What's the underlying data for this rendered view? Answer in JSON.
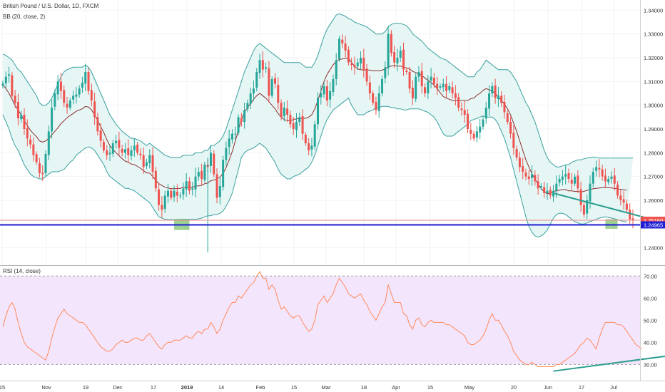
{
  "header": {
    "symbol_line": "British Pound / U.S. Dollar, 1D, FXCM",
    "bb_line": "BB (20, close, 2)",
    "rsi_line": "RSI (14, close)"
  },
  "colors": {
    "up": "#26a69a",
    "down": "#ef5350",
    "bb_band": "#3aa0a0",
    "bb_fill": "#e6f6f4",
    "bb_basis": "#8b2f2f",
    "support_line": "#1f1fd6",
    "price_line": "#e88a8a",
    "rsi_line": "#ff8a5c",
    "rsi_band": "#f3e5fb",
    "trendline": "#2b9e8f",
    "highlight": "#7cc36e"
  },
  "price_axis": {
    "ylim": [
      1.2345,
      1.3425
    ],
    "ticks": [
      "1.34000",
      "1.33000",
      "1.32000",
      "1.31000",
      "1.30000",
      "1.29000",
      "1.28000",
      "1.27000",
      "1.26000",
      "1.25000",
      "1.24000"
    ],
    "tick_values": [
      1.34,
      1.33,
      1.32,
      1.31,
      1.3,
      1.29,
      1.28,
      1.27,
      1.26,
      1.25,
      1.24
    ],
    "last_price_label": "1.25160",
    "support_label": "1.24965"
  },
  "rsi_axis": {
    "ylim": [
      24,
      73
    ],
    "ticks": [
      "70.00",
      "60.00",
      "50.00",
      "40.00",
      "30.00"
    ],
    "tick_values": [
      70,
      60,
      50,
      40,
      30
    ],
    "band": [
      30,
      70
    ]
  },
  "x_axis": {
    "labels": [
      "15",
      "Nov",
      "19",
      "Dec",
      "17",
      "2019",
      "14",
      "Feb",
      "15",
      "Mar",
      "18",
      "Apr",
      "15",
      "May",
      "20",
      "Jun",
      "17",
      "Jul"
    ],
    "positions": [
      3,
      65,
      120,
      165,
      215,
      262,
      310,
      365,
      412,
      457,
      510,
      555,
      603,
      658,
      720,
      768,
      815,
      860
    ]
  },
  "chart_data": [
    {
      "type": "candlestick",
      "title": "British Pound / U.S. Dollar, 1D, FXCM",
      "overlay": "BB (20, close, 2)",
      "last_price": 1.2516,
      "support_level": 1.24965,
      "close": [
        1.3092,
        1.312,
        1.313,
        1.304,
        1.301,
        1.2945,
        1.296,
        1.29,
        1.286,
        1.2835,
        1.279,
        1.276,
        1.2715,
        1.271,
        1.2795,
        1.289,
        1.299,
        1.305,
        1.31,
        1.306,
        1.301,
        1.299,
        1.302,
        1.304,
        1.3045,
        1.307,
        1.3095,
        1.314,
        1.306,
        1.302,
        1.295,
        1.289,
        1.285,
        1.281,
        1.279,
        1.28,
        1.284,
        1.285,
        1.282,
        1.28,
        1.2815,
        1.279,
        1.281,
        1.283,
        1.28,
        1.279,
        1.274,
        1.276,
        1.279,
        1.272,
        1.265,
        1.258,
        1.256,
        1.262,
        1.264,
        1.261,
        1.264,
        1.262,
        1.262,
        1.265,
        1.268,
        1.264,
        1.265,
        1.27,
        1.272,
        1.269,
        1.275,
        1.274,
        1.28,
        1.271,
        1.261,
        1.266,
        1.277,
        1.282,
        1.286,
        1.288,
        1.288,
        1.295,
        1.293,
        1.298,
        1.301,
        1.305,
        1.307,
        1.314,
        1.319,
        1.315,
        1.316,
        1.304,
        1.311,
        1.309,
        1.301,
        1.295,
        1.299,
        1.296,
        1.292,
        1.29,
        1.293,
        1.295,
        1.288,
        1.284,
        1.281,
        1.283,
        1.292,
        1.303,
        1.305,
        1.308,
        1.302,
        1.306,
        1.311,
        1.319,
        1.328,
        1.326,
        1.323,
        1.318,
        1.317,
        1.316,
        1.318,
        1.32,
        1.315,
        1.31,
        1.305,
        1.301,
        1.298,
        1.305,
        1.311,
        1.316,
        1.33,
        1.322,
        1.318,
        1.32,
        1.323,
        1.315,
        1.314,
        1.307,
        1.303,
        1.312,
        1.314,
        1.308,
        1.305,
        1.31,
        1.312,
        1.309,
        1.307,
        1.308,
        1.309,
        1.306,
        1.308,
        1.305,
        1.303,
        1.299,
        1.298,
        1.296,
        1.29,
        1.288,
        1.286,
        1.289,
        1.291,
        1.294,
        1.299,
        1.305,
        1.308,
        1.303,
        1.304,
        1.301,
        1.297,
        1.293,
        1.288,
        1.282,
        1.278,
        1.274,
        1.272,
        1.27,
        1.269,
        1.271,
        1.268,
        1.265,
        1.266,
        1.263,
        1.264,
        1.262,
        1.264,
        1.267,
        1.269,
        1.27,
        1.271,
        1.269,
        1.267,
        1.27,
        1.265,
        1.258,
        1.254,
        1.26,
        1.267,
        1.272,
        1.274,
        1.273,
        1.27,
        1.268,
        1.269,
        1.27,
        1.267,
        1.262,
        1.26,
        1.259,
        1.256,
        1.252,
        1.2516
      ],
      "bb_upper": [
        1.3215,
        1.321,
        1.32,
        1.319,
        1.317,
        1.315,
        1.314,
        1.312,
        1.31,
        1.308,
        1.306,
        1.304,
        1.301,
        1.3,
        1.3,
        1.301,
        1.303,
        1.306,
        1.309,
        1.312,
        1.314,
        1.315,
        1.3155,
        1.316,
        1.316,
        1.316,
        1.316,
        1.317,
        1.316,
        1.314,
        1.311,
        1.308,
        1.305,
        1.302,
        1.299,
        1.296,
        1.294,
        1.292,
        1.2905,
        1.289,
        1.288,
        1.287,
        1.286,
        1.286,
        1.2855,
        1.285,
        1.284,
        1.283,
        1.284,
        1.283,
        1.282,
        1.281,
        1.28,
        1.279,
        1.2785,
        1.278,
        1.278,
        1.278,
        1.278,
        1.279,
        1.279,
        1.279,
        1.279,
        1.28,
        1.28,
        1.28,
        1.281,
        1.281,
        1.283,
        1.283,
        1.284,
        1.285,
        1.287,
        1.29,
        1.294,
        1.298,
        1.302,
        1.306,
        1.31,
        1.314,
        1.317,
        1.32,
        1.323,
        1.325,
        1.326,
        1.325,
        1.324,
        1.323,
        1.322,
        1.321,
        1.32,
        1.319,
        1.318,
        1.318,
        1.318,
        1.318,
        1.318,
        1.318,
        1.317,
        1.316,
        1.316,
        1.316,
        1.318,
        1.321,
        1.325,
        1.329,
        1.332,
        1.334,
        1.336,
        1.338,
        1.3385,
        1.338,
        1.3375,
        1.3365,
        1.336,
        1.335,
        1.3345,
        1.334,
        1.3335,
        1.333,
        1.332,
        1.331,
        1.33,
        1.33,
        1.33,
        1.331,
        1.333,
        1.334,
        1.3345,
        1.3345,
        1.3345,
        1.334,
        1.3335,
        1.332,
        1.33,
        1.329,
        1.328,
        1.327,
        1.3255,
        1.324,
        1.323,
        1.322,
        1.321,
        1.32,
        1.3195,
        1.319,
        1.318,
        1.317,
        1.316,
        1.315,
        1.314,
        1.313,
        1.312,
        1.312,
        1.312,
        1.314,
        1.315,
        1.317,
        1.319,
        1.318,
        1.317,
        1.316,
        1.315,
        1.315,
        1.315,
        1.315,
        1.314,
        1.312,
        1.31,
        1.307,
        1.304,
        1.301,
        1.299,
        1.296,
        1.293,
        1.289,
        1.285,
        1.281,
        1.278,
        1.276,
        1.275,
        1.274,
        1.274,
        1.2745,
        1.275,
        1.275,
        1.276,
        1.2765,
        1.277,
        1.277,
        1.2775,
        1.2778,
        1.278,
        1.2782,
        1.278,
        1.2778,
        1.2778,
        1.2778,
        1.2778,
        1.2778,
        1.2778,
        1.2778,
        1.2778,
        1.2778,
        1.2778,
        1.2778,
        1.2778
      ],
      "bb_lower": [
        1.296,
        1.293,
        1.29,
        1.286,
        1.283,
        1.281,
        1.278,
        1.275,
        1.273,
        1.271,
        1.27,
        1.2695,
        1.269,
        1.269,
        1.27,
        1.271,
        1.272,
        1.272,
        1.272,
        1.2725,
        1.273,
        1.2745,
        1.276,
        1.277,
        1.279,
        1.28,
        1.281,
        1.282,
        1.2825,
        1.282,
        1.281,
        1.279,
        1.277,
        1.275,
        1.272,
        1.27,
        1.269,
        1.268,
        1.267,
        1.266,
        1.265,
        1.265,
        1.2645,
        1.264,
        1.263,
        1.262,
        1.261,
        1.26,
        1.259,
        1.257,
        1.255,
        1.253,
        1.2525,
        1.252,
        1.2518,
        1.2518,
        1.2518,
        1.2519,
        1.252,
        1.252,
        1.252,
        1.252,
        1.252,
        1.252,
        1.2522,
        1.2525,
        1.253,
        1.2535,
        1.2535,
        1.254,
        1.254,
        1.2545,
        1.2555,
        1.2575,
        1.26,
        1.263,
        1.268,
        1.273,
        1.278,
        1.28,
        1.281,
        1.2815,
        1.282,
        1.283,
        1.284,
        1.283,
        1.282,
        1.28,
        1.278,
        1.276,
        1.273,
        1.271,
        1.27,
        1.269,
        1.269,
        1.27,
        1.2705,
        1.271,
        1.272,
        1.273,
        1.274,
        1.276,
        1.279,
        1.283,
        1.287,
        1.291,
        1.294,
        1.296,
        1.298,
        1.299,
        1.3,
        1.301,
        1.302,
        1.303,
        1.3,
        1.298,
        1.296,
        1.296,
        1.296,
        1.297,
        1.2975,
        1.298,
        1.299,
        1.299,
        1.2995,
        1.2995,
        1.2995,
        1.299,
        1.299,
        1.2985,
        1.2985,
        1.298,
        1.298,
        1.2985,
        1.2985,
        1.2985,
        1.2985,
        1.298,
        1.2975,
        1.297,
        1.296,
        1.295,
        1.293,
        1.2905,
        1.288,
        1.287,
        1.287,
        1.287,
        1.288,
        1.289,
        1.29,
        1.291,
        1.292,
        1.2935,
        1.294,
        1.2945,
        1.295,
        1.2955,
        1.295,
        1.295,
        1.295,
        1.294,
        1.292,
        1.289,
        1.286,
        1.282,
        1.278,
        1.273,
        1.268,
        1.263,
        1.258,
        1.253,
        1.249,
        1.2465,
        1.245,
        1.2445,
        1.245,
        1.246,
        1.2475,
        1.25,
        1.2525,
        1.254,
        1.2545,
        1.2545,
        1.254,
        1.253,
        1.252,
        1.251,
        1.2505,
        1.25,
        1.25,
        1.2505,
        1.251,
        1.2515,
        1.252,
        1.2525,
        1.2528,
        1.253,
        1.2528,
        1.2525,
        1.2522,
        1.2518,
        1.2514,
        1.2511,
        1.2508
      ]
    },
    {
      "type": "line",
      "title": "RSI (14, close)",
      "values": [
        47,
        52,
        56,
        58,
        55,
        49,
        44,
        40,
        38,
        37,
        36,
        35,
        34,
        33,
        32,
        36,
        42,
        47,
        51,
        53,
        55,
        53,
        52,
        51,
        50,
        49,
        49,
        48,
        46,
        44,
        42,
        40,
        38,
        37,
        36,
        36,
        37,
        39,
        40,
        41,
        40,
        40,
        41,
        42,
        42,
        41,
        41,
        43,
        44,
        42,
        40,
        38,
        37,
        39,
        40,
        40,
        41,
        41,
        41,
        42,
        43,
        42,
        42,
        44,
        45,
        44,
        46,
        46,
        49,
        47,
        44,
        46,
        50,
        53,
        56,
        58,
        58,
        61,
        60,
        62,
        64,
        66,
        67,
        70,
        72,
        69,
        69,
        64,
        66,
        64,
        59,
        55,
        56,
        54,
        52,
        51,
        52,
        52,
        49,
        47,
        45,
        46,
        50,
        57,
        59,
        61,
        58,
        60,
        62,
        66,
        69,
        67,
        65,
        62,
        61,
        60,
        61,
        62,
        59,
        57,
        54,
        52,
        50,
        53,
        56,
        58,
        66,
        62,
        58,
        58,
        58,
        53,
        52,
        48,
        46,
        50,
        51,
        48,
        47,
        49,
        50,
        49,
        49,
        49,
        49,
        48,
        48,
        47,
        46,
        45,
        44,
        43,
        40,
        39,
        39,
        40,
        41,
        43,
        46,
        50,
        53,
        50,
        50,
        48,
        45,
        43,
        40,
        36,
        34,
        32,
        31,
        30,
        30,
        31,
        30,
        29,
        29,
        29,
        29,
        29,
        29,
        30,
        30,
        31,
        32,
        33,
        34,
        35,
        37,
        39,
        40,
        42,
        41,
        39,
        37,
        42,
        46,
        49,
        49,
        49,
        49,
        48,
        48,
        47,
        45,
        43,
        41,
        39,
        38,
        37
      ],
      "ylim": [
        24,
        73
      ],
      "band": [
        30,
        70
      ]
    }
  ],
  "annotations": {
    "price_trendline": {
      "from": {
        "index": 180,
        "value": 1.263
      },
      "to": {
        "index": 218,
        "value": 1.25
      }
    },
    "rsi_trendline": {
      "from": {
        "index": 180,
        "value": 27
      },
      "to": {
        "index": 218,
        "value": 34
      }
    },
    "highlight_boxes": [
      {
        "from_index": 56,
        "to_index": 61,
        "from_value": 1.2475,
        "to_value": 1.252
      },
      {
        "from_index": 197,
        "to_index": 201,
        "from_value": 1.248,
        "to_value": 1.252
      }
    ],
    "spike_wick": {
      "index": 67,
      "low": 1.238,
      "high": 1.278
    }
  }
}
